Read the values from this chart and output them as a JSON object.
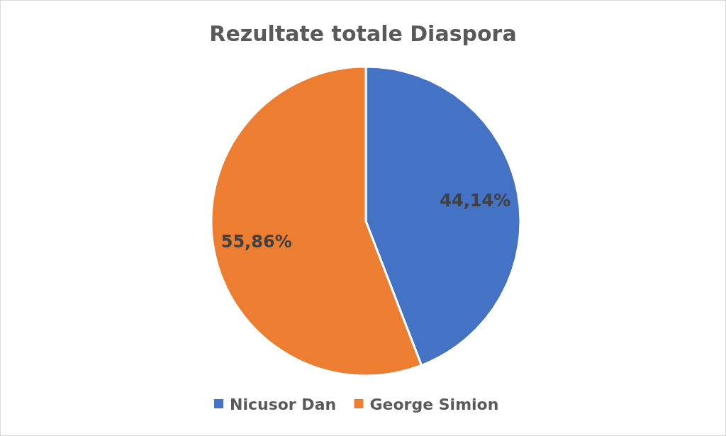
{
  "chart_data": {
    "type": "pie",
    "title": "Rezultate totale Diaspora",
    "categories": [
      "Nicusor Dan",
      "George Simion"
    ],
    "values": [
      44.14,
      55.86
    ],
    "colors": [
      "#4472c4",
      "#ed7d31"
    ],
    "value_labels": [
      "44,14%",
      "55,86%"
    ],
    "legend": "bottom"
  }
}
